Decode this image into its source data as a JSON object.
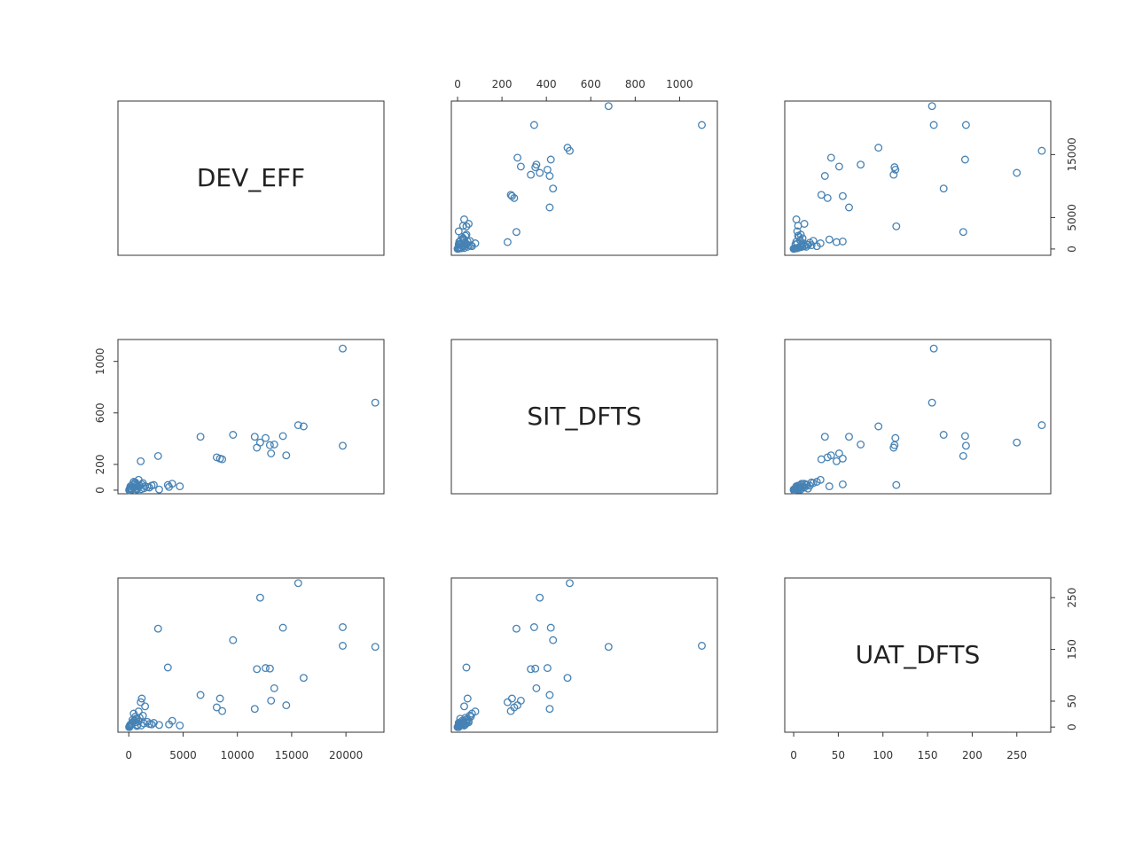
{
  "chart_data": {
    "type": "scatter",
    "variables": [
      "DEV_EFF",
      "SIT_DFTS",
      "UAT_DFTS"
    ],
    "colors": {
      "points": "#4682b4",
      "frame": "#333333",
      "text": "#222222"
    },
    "axes": {
      "DEV_EFF": {
        "range": [
          -1000,
          23500
        ],
        "ticks": [
          0,
          5000,
          10000,
          15000,
          20000
        ],
        "tick_labels": [
          "0",
          "5000",
          "10000",
          "15000",
          "20000"
        ]
      },
      "SIT_DFTS": {
        "range": [
          -28,
          1170
        ],
        "ticks": [
          0,
          200,
          400,
          600,
          800,
          1000
        ],
        "tick_labels": [
          "0",
          "200",
          "400",
          "600",
          "800",
          "1000"
        ]
      },
      "SIT_DFTS_left": {
        "ticks": [
          0,
          200,
          600,
          1000
        ],
        "tick_labels": [
          "0",
          "200",
          "600",
          "1000"
        ]
      },
      "DEV_EFF_right": {
        "ticks": [
          0,
          5000,
          15000
        ],
        "tick_labels": [
          "0",
          "5000",
          "15000"
        ]
      },
      "UAT_DFTS": {
        "range": [
          -10,
          288
        ],
        "ticks": [
          0,
          50,
          100,
          150,
          200,
          250
        ],
        "tick_labels": [
          "0",
          "50",
          "100",
          "150",
          "200",
          "250"
        ]
      },
      "UAT_DFTS_right": {
        "ticks": [
          0,
          50,
          150,
          250
        ],
        "tick_labels": [
          "0",
          "50",
          "150",
          "250"
        ]
      }
    },
    "records": [
      {
        "DEV_EFF": 22700,
        "SIT_DFTS": 680,
        "UAT_DFTS": 155
      },
      {
        "DEV_EFF": 19700,
        "SIT_DFTS": 1100,
        "UAT_DFTS": 157
      },
      {
        "DEV_EFF": 15600,
        "SIT_DFTS": 505,
        "UAT_DFTS": 278
      },
      {
        "DEV_EFF": 16100,
        "SIT_DFTS": 495,
        "UAT_DFTS": 95
      },
      {
        "DEV_EFF": 12100,
        "SIT_DFTS": 370,
        "UAT_DFTS": 250
      },
      {
        "DEV_EFF": 19700,
        "SIT_DFTS": 345,
        "UAT_DFTS": 193
      },
      {
        "DEV_EFF": 9600,
        "SIT_DFTS": 430,
        "UAT_DFTS": 168
      },
      {
        "DEV_EFF": 14200,
        "SIT_DFTS": 420,
        "UAT_DFTS": 192
      },
      {
        "DEV_EFF": 13000,
        "SIT_DFTS": 350,
        "UAT_DFTS": 113
      },
      {
        "DEV_EFF": 11800,
        "SIT_DFTS": 330,
        "UAT_DFTS": 112
      },
      {
        "DEV_EFF": 12600,
        "SIT_DFTS": 405,
        "UAT_DFTS": 114
      },
      {
        "DEV_EFF": 13400,
        "SIT_DFTS": 355,
        "UAT_DFTS": 75
      },
      {
        "DEV_EFF": 13100,
        "SIT_DFTS": 285,
        "UAT_DFTS": 51
      },
      {
        "DEV_EFF": 14500,
        "SIT_DFTS": 270,
        "UAT_DFTS": 42
      },
      {
        "DEV_EFF": 11600,
        "SIT_DFTS": 415,
        "UAT_DFTS": 35
      },
      {
        "DEV_EFF": 6600,
        "SIT_DFTS": 415,
        "UAT_DFTS": 62
      },
      {
        "DEV_EFF": 8400,
        "SIT_DFTS": 245,
        "UAT_DFTS": 55
      },
      {
        "DEV_EFF": 8100,
        "SIT_DFTS": 255,
        "UAT_DFTS": 38
      },
      {
        "DEV_EFF": 8600,
        "SIT_DFTS": 240,
        "UAT_DFTS": 31
      },
      {
        "DEV_EFF": 2700,
        "SIT_DFTS": 265,
        "UAT_DFTS": 190
      },
      {
        "DEV_EFF": 1100,
        "SIT_DFTS": 225,
        "UAT_DFTS": 48
      },
      {
        "DEV_EFF": 3600,
        "SIT_DFTS": 40,
        "UAT_DFTS": 115
      },
      {
        "DEV_EFF": 1200,
        "SIT_DFTS": 45,
        "UAT_DFTS": 55
      },
      {
        "DEV_EFF": 1500,
        "SIT_DFTS": 30,
        "UAT_DFTS": 40
      },
      {
        "DEV_EFF": 4000,
        "SIT_DFTS": 50,
        "UAT_DFTS": 12
      },
      {
        "DEV_EFF": 3700,
        "SIT_DFTS": 25,
        "UAT_DFTS": 5
      },
      {
        "DEV_EFF": 4700,
        "SIT_DFTS": 30,
        "UAT_DFTS": 3
      },
      {
        "DEV_EFF": 2800,
        "SIT_DFTS": 5,
        "UAT_DFTS": 4
      },
      {
        "DEV_EFF": 2300,
        "SIT_DFTS": 40,
        "UAT_DFTS": 8
      },
      {
        "DEV_EFF": 900,
        "SIT_DFTS": 80,
        "UAT_DFTS": 30
      },
      {
        "DEV_EFF": 600,
        "SIT_DFTS": 60,
        "UAT_DFTS": 20
      },
      {
        "DEV_EFF": 1900,
        "SIT_DFTS": 20,
        "UAT_DFTS": 6
      },
      {
        "DEV_EFF": 1300,
        "SIT_DFTS": 55,
        "UAT_DFTS": 22
      },
      {
        "DEV_EFF": 700,
        "SIT_DFTS": 40,
        "UAT_DFTS": 15
      },
      {
        "DEV_EFF": 400,
        "SIT_DFTS": 25,
        "UAT_DFTS": 10
      },
      {
        "DEV_EFF": 200,
        "SIT_DFTS": 15,
        "UAT_DFTS": 5
      },
      {
        "DEV_EFF": 100,
        "SIT_DFTS": 10,
        "UAT_DFTS": 2
      },
      {
        "DEV_EFF": 300,
        "SIT_DFTS": 5,
        "UAT_DFTS": 8
      },
      {
        "DEV_EFF": 500,
        "SIT_DFTS": 20,
        "UAT_DFTS": 12
      },
      {
        "DEV_EFF": 50,
        "SIT_DFTS": 2,
        "UAT_DFTS": 1
      },
      {
        "DEV_EFF": 150,
        "SIT_DFTS": 30,
        "UAT_DFTS": 3
      },
      {
        "DEV_EFF": 800,
        "SIT_DFTS": 10,
        "UAT_DFTS": 4
      },
      {
        "DEV_EFF": 1000,
        "SIT_DFTS": 35,
        "UAT_DFTS": 18
      },
      {
        "DEV_EFF": 600,
        "SIT_DFTS": 50,
        "UAT_DFTS": 9
      },
      {
        "DEV_EFF": 350,
        "SIT_DFTS": 45,
        "UAT_DFTS": 14
      },
      {
        "DEV_EFF": 250,
        "SIT_DFTS": 8,
        "UAT_DFTS": 6
      },
      {
        "DEV_EFF": 1400,
        "SIT_DFTS": 15,
        "UAT_DFTS": 7
      },
      {
        "DEV_EFF": 1700,
        "SIT_DFTS": 25,
        "UAT_DFTS": 10
      },
      {
        "DEV_EFF": 2100,
        "SIT_DFTS": 35,
        "UAT_DFTS": 5
      },
      {
        "DEV_EFF": 450,
        "SIT_DFTS": 65,
        "UAT_DFTS": 26
      },
      {
        "DEV_EFF": 750,
        "SIT_DFTS": 5,
        "UAT_DFTS": 2
      },
      {
        "DEV_EFF": 50,
        "SIT_DFTS": 5,
        "UAT_DFTS": 0
      },
      {
        "DEV_EFF": 120,
        "SIT_DFTS": 18,
        "UAT_DFTS": 4
      },
      {
        "DEV_EFF": 900,
        "SIT_DFTS": 28,
        "UAT_DFTS": 11
      },
      {
        "DEV_EFF": 1150,
        "SIT_DFTS": 8,
        "UAT_DFTS": 3
      },
      {
        "DEV_EFF": 650,
        "SIT_DFTS": 12,
        "UAT_DFTS": 16
      },
      {
        "DEV_EFF": 30,
        "SIT_DFTS": 0,
        "UAT_DFTS": 0
      }
    ]
  }
}
